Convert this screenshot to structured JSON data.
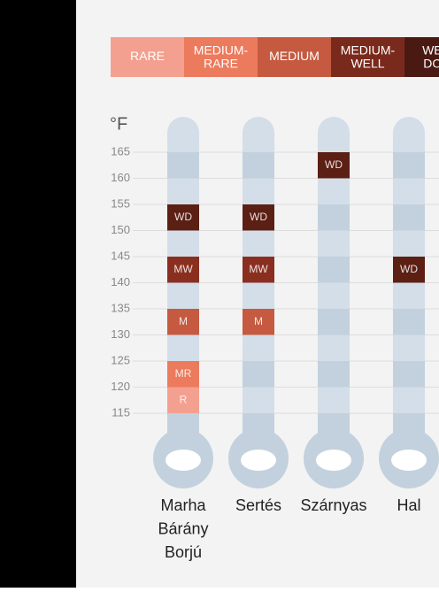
{
  "legend": [
    {
      "label": "RARE",
      "color": "#f4a090"
    },
    {
      "label": "MEDIUM-RARE",
      "color": "#ec7a5d"
    },
    {
      "label": "MEDIUM",
      "color": "#c55a40"
    },
    {
      "label": "MEDIUM-WELL",
      "color": "#7a2a1c"
    },
    {
      "label": "WELL-DONE",
      "color": "#4a1a12"
    }
  ],
  "axis": {
    "unit": "°F",
    "ticks": [
      115,
      120,
      125,
      130,
      135,
      140,
      145,
      150,
      155,
      160,
      165
    ]
  },
  "columns": [
    {
      "label": [
        "Marha",
        "Bárány",
        "Borjú"
      ],
      "markers": [
        {
          "label": "WD",
          "temp": 152.5,
          "color": "#5c1f14"
        },
        {
          "label": "MW",
          "temp": 142.5,
          "color": "#8a2f1f"
        },
        {
          "label": "M",
          "temp": 132.5,
          "color": "#c55a40"
        },
        {
          "label": "MR",
          "temp": 122.5,
          "color": "#ec7a5d"
        },
        {
          "label": "R",
          "temp": 117.5,
          "color": "#f4a090"
        }
      ]
    },
    {
      "label": [
        "Sertés"
      ],
      "markers": [
        {
          "label": "WD",
          "temp": 152.5,
          "color": "#5c1f14"
        },
        {
          "label": "MW",
          "temp": 142.5,
          "color": "#8a2f1f"
        },
        {
          "label": "M",
          "temp": 132.5,
          "color": "#c55a40"
        }
      ]
    },
    {
      "label": [
        "Szárnyas"
      ],
      "markers": [
        {
          "label": "WD",
          "temp": 162.5,
          "color": "#5c1f14"
        }
      ]
    },
    {
      "label": [
        "Hal"
      ],
      "markers": [
        {
          "label": "WD",
          "temp": 142.5,
          "color": "#5c1f14"
        }
      ]
    }
  ]
}
